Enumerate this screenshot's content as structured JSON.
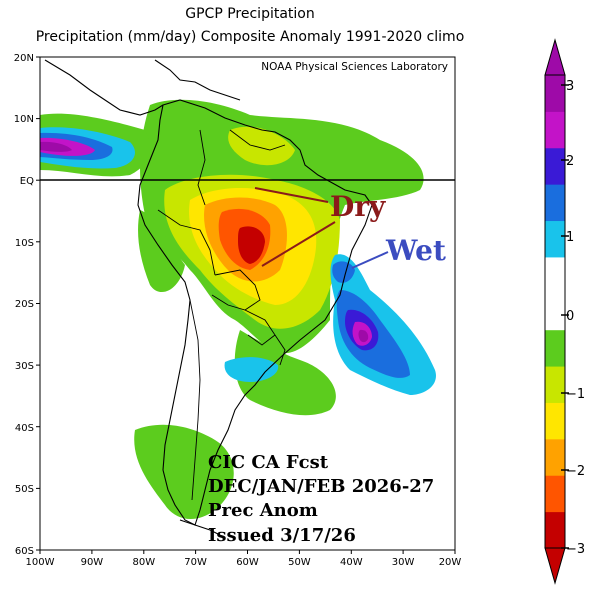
{
  "header": {
    "title": "GPCP Precipitation",
    "subtitle": "Precipitation (mm/day) Composite Anomaly 1991-2020 climo"
  },
  "map": {
    "credit": "NOAA Physical Sciences Laboratory",
    "lat_ticks": [
      "20N",
      "10N",
      "EQ",
      "10S",
      "20S",
      "30S",
      "40S",
      "50S",
      "60S"
    ],
    "lon_ticks": [
      "100W",
      "90W",
      "80W",
      "70W",
      "60W",
      "50W",
      "40W",
      "30W",
      "20W"
    ],
    "annotations": {
      "dry": "Dry",
      "wet": "Wet",
      "dry_color": "#8b1a1a",
      "wet_color": "#3b4cc0"
    },
    "forecast_text": {
      "line1": "CIC CA Fcst",
      "line2": "DEC/JAN/FEB 2026-27",
      "line3": "Prec Anom",
      "line4": "Issued 3/17/26"
    }
  },
  "colorbar": {
    "labels": [
      "3",
      "2",
      "1",
      "0",
      "−1",
      "−2",
      "−3"
    ],
    "colors": [
      "#c40000",
      "#ff5500",
      "#ffa200",
      "#ffe600",
      "#c8e600",
      "#5ccc1e",
      "#ffffff",
      "#ffffff",
      "#19c3eb",
      "#1a6ede",
      "#3a1ad6",
      "#c313c8",
      "#9e0aa8"
    ]
  }
}
